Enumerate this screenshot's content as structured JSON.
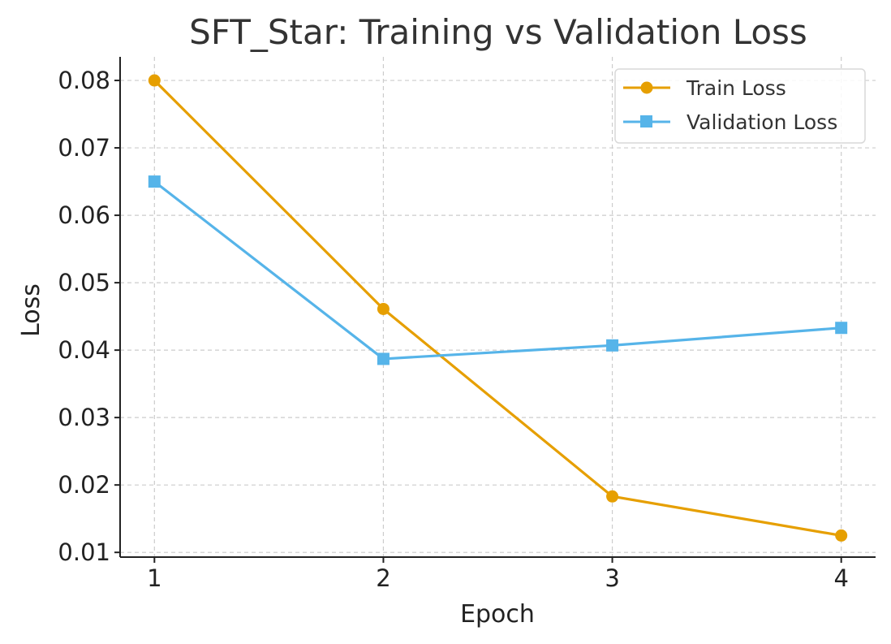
{
  "chart_data": {
    "type": "line",
    "title": "SFT_Star: Training vs Validation Loss",
    "xlabel": "Epoch",
    "ylabel": "Loss",
    "x": [
      1,
      2,
      3,
      4
    ],
    "xticks": [
      "1",
      "2",
      "3",
      "4"
    ],
    "yticks": [
      "0.01",
      "0.02",
      "0.03",
      "0.04",
      "0.05",
      "0.06",
      "0.07",
      "0.08"
    ],
    "xlim": [
      0.85,
      4.15
    ],
    "ylim": [
      0.0093,
      0.0835
    ],
    "grid": true,
    "legend_position": "top-right",
    "series": [
      {
        "name": "Train Loss",
        "values": [
          0.08,
          0.0461,
          0.0183,
          0.0125
        ],
        "color": "#e69f00",
        "marker": "circle"
      },
      {
        "name": "Validation Loss",
        "values": [
          0.065,
          0.0387,
          0.0407,
          0.0433
        ],
        "color": "#56b4e9",
        "marker": "square"
      }
    ]
  }
}
